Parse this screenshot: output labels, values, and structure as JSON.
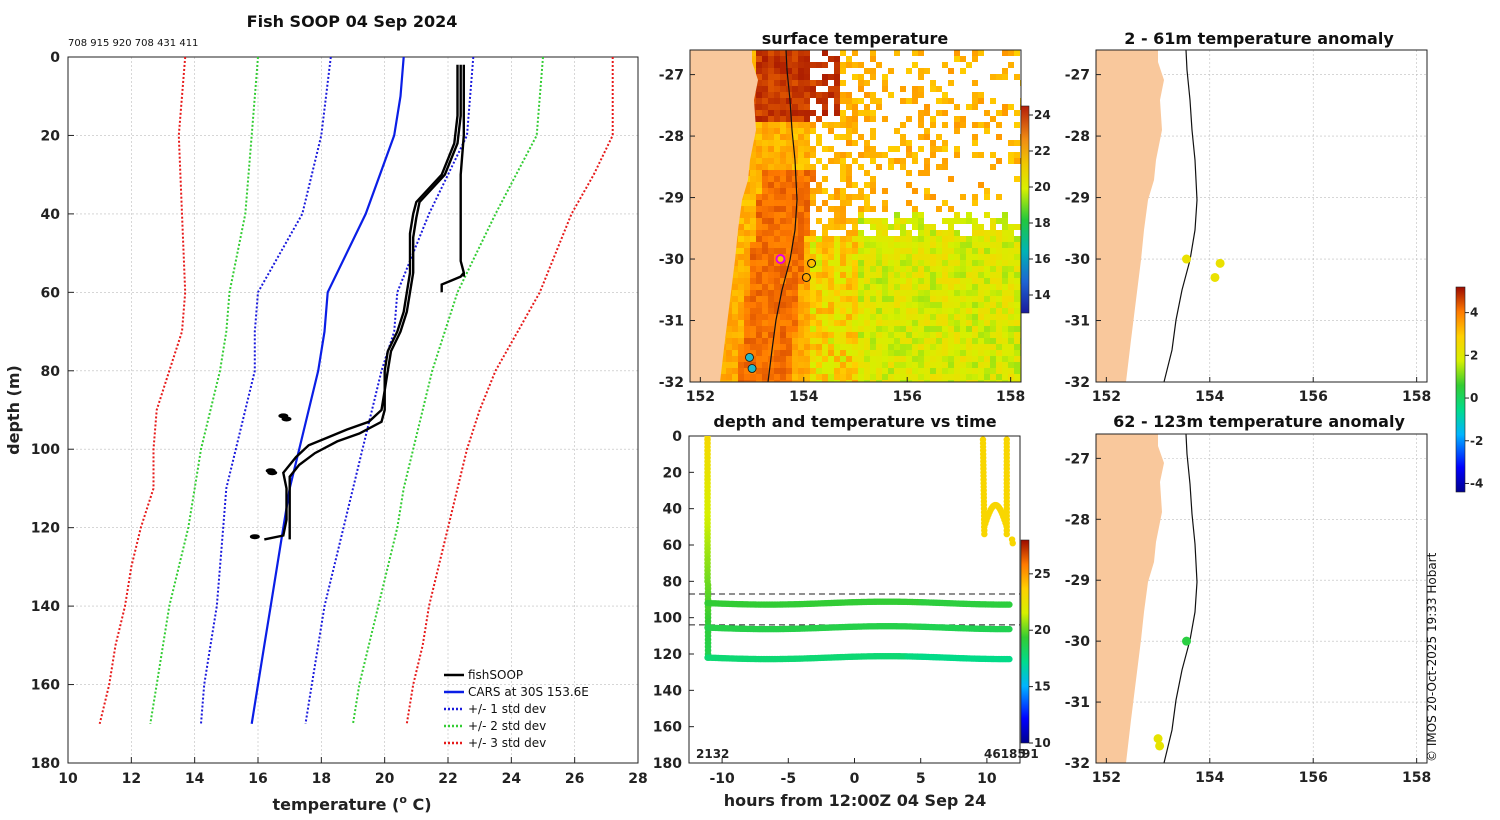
{
  "copyright": "© IMOS 20-Oct-2025 19:33 Hobart",
  "colors": {
    "land": "#f9c89c",
    "fish": "#000000",
    "cars": "#0a1ee6",
    "std1": "#1a1adc",
    "std2": "#33cc33",
    "std3": "#e61a1a"
  },
  "chart_data": [
    {
      "id": "profile",
      "type": "line",
      "title": "Fish SOOP 04 Sep 2024",
      "subtitle": "708 915 920 708 431 411",
      "xlabel": "temperature (",
      "xlabel_sup": "o",
      "xlabel_tail": " C)",
      "ylabel": "depth (m)",
      "xlim": [
        10,
        28
      ],
      "ylim": [
        180,
        0
      ],
      "xticks": [
        10,
        12,
        14,
        16,
        18,
        20,
        22,
        24,
        26,
        28
      ],
      "yticks": [
        0,
        20,
        40,
        60,
        80,
        100,
        120,
        140,
        160,
        180
      ],
      "legend": [
        "fishSOOP",
        "CARS at 30S 153.6E",
        "+/- 1 std dev",
        "+/- 2 std dev",
        "+/- 3 std dev"
      ],
      "series": [
        {
          "name": "CARS",
          "depth": [
            0,
            10,
            20,
            40,
            60,
            70,
            80,
            90,
            100,
            110,
            120,
            130,
            140,
            150,
            160,
            170
          ],
          "temp": [
            20.6,
            20.5,
            20.3,
            19.4,
            18.2,
            18.1,
            17.9,
            17.6,
            17.3,
            17.0,
            16.8,
            16.6,
            16.4,
            16.2,
            16.0,
            15.8
          ]
        },
        {
          "name": "+1sd",
          "depth": [
            0,
            20,
            40,
            60,
            70,
            80,
            90,
            100,
            110,
            120,
            130,
            140,
            150,
            160,
            170
          ],
          "temp": [
            22.8,
            22.6,
            21.4,
            20.4,
            20.3,
            19.9,
            19.6,
            19.3,
            19.0,
            18.7,
            18.4,
            18.1,
            17.9,
            17.7,
            17.5
          ]
        },
        {
          "name": "-1sd",
          "depth": [
            0,
            20,
            40,
            60,
            70,
            80,
            90,
            100,
            110,
            120,
            130,
            140,
            150,
            160,
            170
          ],
          "temp": [
            18.3,
            18.0,
            17.4,
            16.0,
            15.9,
            15.9,
            15.6,
            15.3,
            15.0,
            14.9,
            14.8,
            14.7,
            14.5,
            14.3,
            14.2
          ]
        },
        {
          "name": "+2sd",
          "depth": [
            0,
            20,
            40,
            60,
            70,
            80,
            90,
            100,
            110,
            120,
            130,
            140,
            150,
            160,
            170
          ],
          "temp": [
            25.0,
            24.8,
            23.5,
            22.3,
            21.9,
            21.5,
            21.2,
            20.9,
            20.6,
            20.4,
            20.1,
            19.8,
            19.5,
            19.2,
            19.0
          ]
        },
        {
          "name": "-2sd",
          "depth": [
            0,
            20,
            40,
            60,
            70,
            80,
            90,
            100,
            110,
            120,
            130,
            140,
            150,
            160,
            170
          ],
          "temp": [
            16.0,
            15.8,
            15.6,
            15.1,
            15.0,
            14.8,
            14.5,
            14.2,
            14.0,
            13.8,
            13.5,
            13.2,
            13.0,
            12.8,
            12.6
          ]
        },
        {
          "name": "+3sd",
          "depth": [
            0,
            20,
            30,
            40,
            60,
            70,
            80,
            90,
            100,
            110,
            120,
            130,
            140,
            150,
            160,
            170
          ],
          "temp": [
            27.2,
            27.2,
            26.6,
            25.9,
            24.9,
            24.2,
            23.5,
            23.0,
            22.6,
            22.3,
            22.0,
            21.7,
            21.4,
            21.2,
            20.9,
            20.7
          ]
        },
        {
          "name": "-3sd",
          "depth": [
            0,
            20,
            40,
            60,
            70,
            80,
            90,
            100,
            110,
            120,
            130,
            140,
            150,
            160,
            170
          ],
          "temp": [
            13.7,
            13.5,
            13.6,
            13.7,
            13.6,
            13.2,
            12.8,
            12.7,
            12.7,
            12.3,
            12.0,
            11.8,
            11.5,
            11.3,
            11.0
          ]
        },
        {
          "name": "fish1",
          "depth": [
            2,
            15,
            22,
            30,
            37,
            40,
            45,
            55,
            65,
            70,
            75,
            80,
            85,
            90,
            93,
            95,
            97,
            99,
            102,
            106,
            110,
            118,
            122,
            123
          ],
          "temp": [
            22.3,
            22.3,
            22.2,
            21.8,
            21.0,
            20.9,
            20.8,
            20.8,
            20.6,
            20.4,
            20.1,
            20.0,
            20.0,
            19.9,
            19.5,
            18.8,
            18.2,
            17.6,
            17.2,
            16.8,
            16.9,
            16.9,
            16.8,
            16.2
          ]
        },
        {
          "name": "fish2",
          "depth": [
            2,
            15,
            22,
            30,
            37,
            41,
            46,
            55,
            65,
            70,
            75,
            80,
            85,
            90,
            93,
            96,
            98,
            101,
            104,
            107,
            110,
            120,
            123
          ],
          "temp": [
            22.4,
            22.4,
            22.3,
            21.9,
            21.1,
            21.0,
            20.9,
            20.9,
            20.7,
            20.5,
            20.2,
            20.1,
            20.0,
            20.0,
            19.9,
            19.2,
            18.5,
            17.8,
            17.3,
            17.0,
            17.0,
            17.0,
            17.0
          ]
        },
        {
          "name": "fish3",
          "depth": [
            2,
            20,
            30,
            40,
            45,
            52,
            55,
            56
          ],
          "temp": [
            22.5,
            22.5,
            22.4,
            22.4,
            22.4,
            22.4,
            22.5,
            22.5
          ]
        },
        {
          "name": "fish4",
          "depth": [
            60,
            58,
            57,
            56,
            55
          ],
          "temp": [
            21.8,
            21.8,
            22.1,
            22.4,
            22.5
          ]
        }
      ]
    },
    {
      "id": "sst_map",
      "type": "heatmap",
      "title": "surface temperature",
      "xticks": [
        152,
        154,
        156,
        158
      ],
      "yticks": [
        -27,
        -28,
        -29,
        -30,
        -31,
        -32
      ],
      "xlim": [
        151.8,
        158.2
      ],
      "ylim": [
        -32,
        -26.6
      ],
      "colorbar": {
        "min": 13,
        "max": 24.5,
        "ticks": [
          14,
          16,
          18,
          20,
          22,
          24
        ]
      },
      "markers": [
        {
          "lon": 153.55,
          "lat": -30.0,
          "kind": "current"
        },
        {
          "lon": 154.15,
          "lat": -30.07,
          "kind": "hollow"
        },
        {
          "lon": 154.05,
          "lat": -30.3,
          "kind": "hollow"
        },
        {
          "lon": 152.95,
          "lat": -31.6,
          "kind": "cyan"
        },
        {
          "lon": 153.0,
          "lat": -31.78,
          "kind": "cyan"
        }
      ]
    },
    {
      "id": "timeseries",
      "type": "scatter",
      "title": "depth and temperature vs time",
      "xlabel": "hours from 12:00Z 04 Sep 24",
      "xticks": [
        -10,
        -5,
        0,
        5,
        10
      ],
      "yticks": [
        0,
        20,
        40,
        60,
        80,
        100,
        120,
        140,
        160,
        180
      ],
      "xlim": [
        -12.5,
        12.5
      ],
      "ylim": [
        180,
        0
      ],
      "dashed_depths": [
        87,
        104
      ],
      "corner_labels": [
        "2132",
        "46185",
        "91"
      ],
      "colorbar": {
        "min": 10,
        "max": 28,
        "ticks": [
          10,
          15,
          20,
          25
        ]
      },
      "tracks": [
        {
          "kind": "vertical",
          "hour": -11.1,
          "depth_from": 0,
          "depth_to": 122
        },
        {
          "kind": "horizontal",
          "depth": 92,
          "temp": 19.3
        },
        {
          "kind": "horizontal",
          "depth": 105.5,
          "temp": 18.8
        },
        {
          "kind": "horizontal",
          "depth": 122,
          "temp": 17.8
        },
        {
          "kind": "late",
          "temp": 23.3
        }
      ]
    },
    {
      "id": "anomaly_shallow",
      "type": "scatter",
      "title": "2 - 61m temperature anomaly",
      "xticks": [
        152,
        154,
        156,
        158
      ],
      "yticks": [
        -27,
        -28,
        -29,
        -30,
        -31,
        -32
      ],
      "xlim": [
        151.8,
        158.2
      ],
      "ylim": [
        -32,
        -26.6
      ],
      "points": [
        {
          "lon": 153.55,
          "lat": -30.0,
          "anom": 2.3
        },
        {
          "lon": 154.2,
          "lat": -30.07,
          "anom": 2.3
        },
        {
          "lon": 154.1,
          "lat": -30.3,
          "anom": 2.3
        }
      ]
    },
    {
      "id": "anomaly_deep",
      "type": "scatter",
      "title": "62 - 123m temperature anomaly",
      "xticks": [
        152,
        154,
        156,
        158
      ],
      "yticks": [
        -27,
        -28,
        -29,
        -30,
        -31,
        -32
      ],
      "xlim": [
        151.8,
        158.2
      ],
      "ylim": [
        -32,
        -26.6
      ],
      "points": [
        {
          "lon": 153.55,
          "lat": -30.0,
          "anom": 0.4
        },
        {
          "lon": 153.0,
          "lat": -31.6,
          "anom": 2.2
        },
        {
          "lon": 153.03,
          "lat": -31.72,
          "anom": 2.2
        }
      ]
    },
    {
      "id": "anomaly_colorbar",
      "type": "colorbar",
      "min": -4.4,
      "max": 5.2,
      "ticks": [
        -4,
        -2,
        0,
        2,
        4
      ]
    }
  ]
}
